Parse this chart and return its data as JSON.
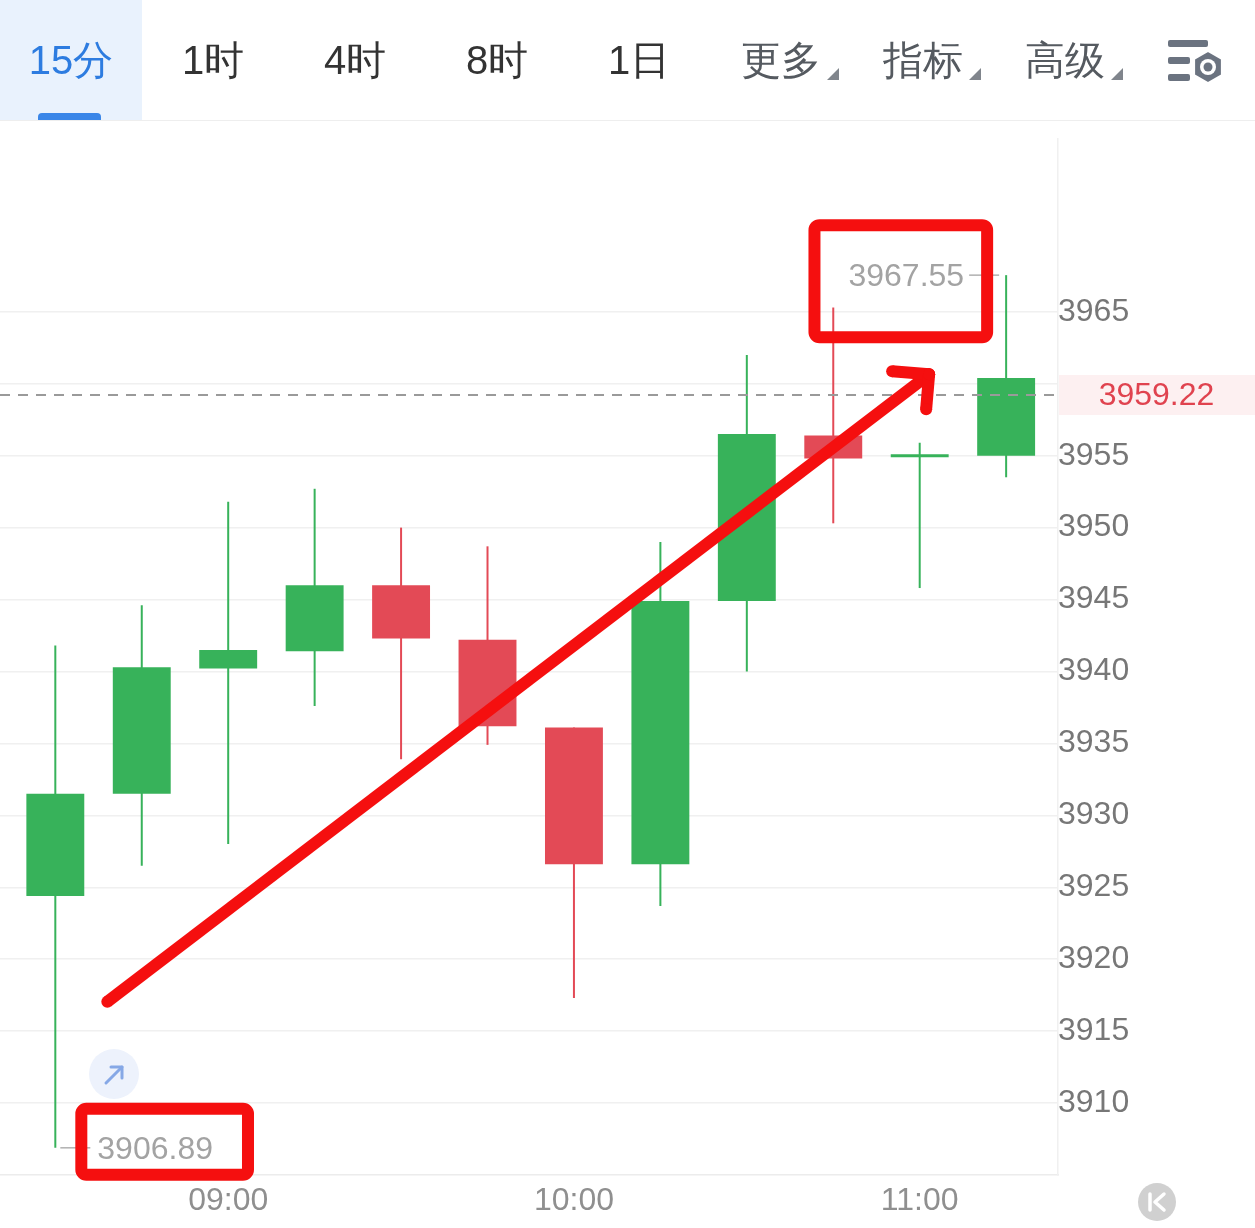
{
  "chart_data": {
    "type": "candlestick",
    "x": [
      8.5,
      8.75,
      9,
      9.25,
      9.5,
      9.75,
      10,
      10.25,
      10.5,
      10.75,
      11,
      11.25
    ],
    "ohlc": [
      [
        3924.4,
        3941.8,
        3906.89,
        3931.5
      ],
      [
        3931.5,
        3944.6,
        3926.5,
        3940.3
      ],
      [
        3940.2,
        3951.8,
        3928.0,
        3941.5
      ],
      [
        3941.4,
        3952.7,
        3937.6,
        3946.0
      ],
      [
        3946.0,
        3950.0,
        3933.9,
        3942.3
      ],
      [
        3942.2,
        3948.7,
        3934.9,
        3936.2
      ],
      [
        3936.1,
        3936.1,
        3917.3,
        3926.6
      ],
      [
        3926.6,
        3949.0,
        3923.7,
        3944.9
      ],
      [
        3944.9,
        3962.0,
        3940.0,
        3956.5
      ],
      [
        3956.4,
        3965.3,
        3950.3,
        3954.8
      ],
      [
        3954.9,
        3955.9,
        3945.8,
        3955.0
      ],
      [
        3955.0,
        3967.55,
        3953.5,
        3960.4
      ]
    ],
    "colors": [
      "#37b25a",
      "#37b25a",
      "#37b25a",
      "#37b25a",
      "#e34a56",
      "#e34a56",
      "#e34a56",
      "#37b25a",
      "#37b25a",
      "#e34a56",
      "#37b25a",
      "#37b25a"
    ],
    "xlim": [
      8.34,
      11.4
    ],
    "xticks": [
      {
        "value": 9,
        "label": "09:00"
      },
      {
        "value": 10,
        "label": "10:00"
      },
      {
        "value": 11,
        "label": "11:00"
      }
    ],
    "ylim": [
      3905,
      3977
    ],
    "yticks": [
      3910,
      3915,
      3920,
      3925,
      3930,
      3935,
      3940,
      3945,
      3950,
      3955,
      {
        "value": 3960,
        "label": null
      },
      3965
    ],
    "grid": "y",
    "ref_lines": [
      {
        "axis": "y",
        "value": 3959.22,
        "label": "3959.22",
        "color": "#9a9a9a",
        "line_style": "dashed"
      }
    ],
    "annotations": [
      {
        "text": "3967.55",
        "x": 11.25,
        "y": 3967.55
      },
      {
        "text": "3906.89",
        "x": 8.5,
        "y": 3906.89
      },
      "15分",
      "1时",
      "4时",
      "8时",
      "1日",
      "更多",
      "指标",
      "高级"
    ]
  }
}
